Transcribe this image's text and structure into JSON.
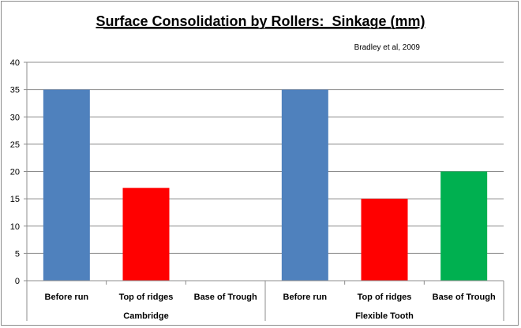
{
  "chart_data": {
    "type": "bar",
    "title": "Surface Consolidation by Rollers:  Sinkage (mm)",
    "annotation": "Bradley et al, 2009",
    "xlabel": "",
    "ylabel": "",
    "ylim": [
      0,
      40
    ],
    "yticks": [
      0,
      5,
      10,
      15,
      20,
      25,
      30,
      35,
      40
    ],
    "grid": true,
    "legend": "none",
    "groups": [
      {
        "name": "Cambridge",
        "categories": [
          "Before run",
          "Top of ridges",
          "Base of Trough"
        ],
        "values": [
          35,
          17,
          0
        ]
      },
      {
        "name": "Flexible Tooth",
        "categories": [
          "Before run",
          "Top of ridges",
          "Base of Trough"
        ],
        "values": [
          35,
          15,
          20
        ]
      }
    ],
    "colors": {
      "Before run": "#4f81bd",
      "Top of ridges": "#ff0000",
      "Base of Trough": "#00b050"
    }
  }
}
